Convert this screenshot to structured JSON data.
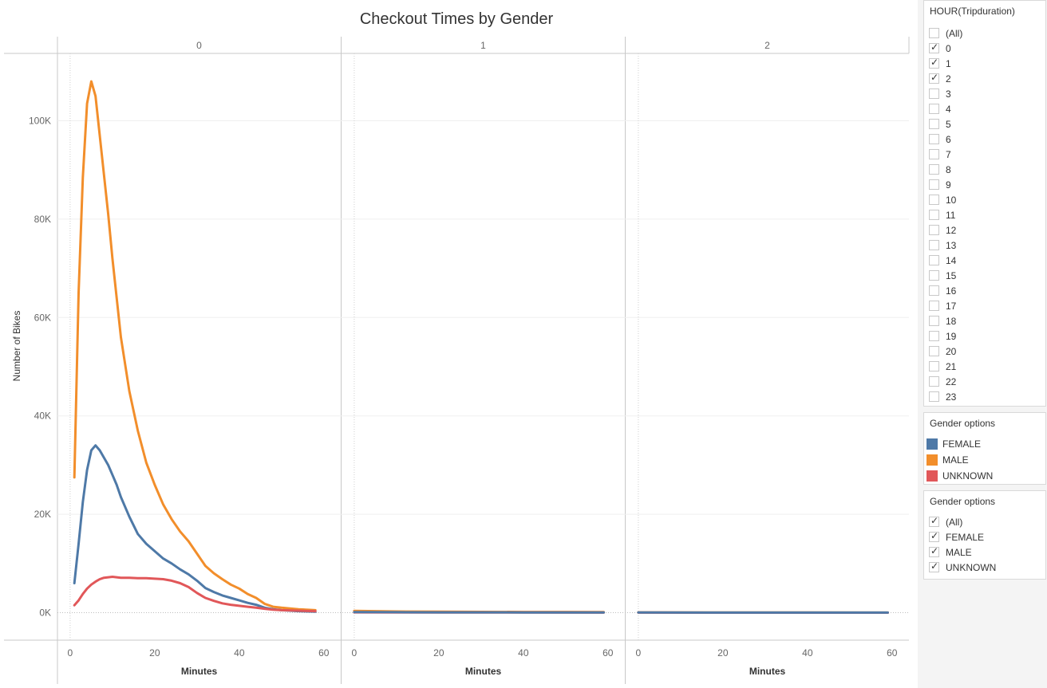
{
  "chart_data": {
    "type": "line",
    "title": "Checkout Times by Gender",
    "xlabel": "Minutes",
    "ylabel": "Number of Bikes",
    "ylim": [
      0,
      110000
    ],
    "xlim": [
      -3,
      64
    ],
    "y_ticks": [
      {
        "value": 0,
        "label": "0K"
      },
      {
        "value": 20000,
        "label": "20K"
      },
      {
        "value": 40000,
        "label": "40K"
      },
      {
        "value": 60000,
        "label": "60K"
      },
      {
        "value": 80000,
        "label": "80K"
      },
      {
        "value": 100000,
        "label": "100K"
      }
    ],
    "x_ticks": [
      0,
      20,
      40,
      60
    ],
    "grid": true,
    "panels": [
      {
        "label": "0",
        "series": [
          {
            "name": "MALE",
            "color": "#f28e2b",
            "points": [
              [
                1,
                27500
              ],
              [
                2,
                65000
              ],
              [
                3,
                88500
              ],
              [
                4,
                103500
              ],
              [
                5,
                108000
              ],
              [
                6,
                105000
              ],
              [
                7,
                97000
              ],
              [
                8,
                89000
              ],
              [
                9,
                81000
              ],
              [
                10,
                72000
              ],
              [
                11,
                64000
              ],
              [
                12,
                56000
              ],
              [
                14,
                45000
              ],
              [
                16,
                37000
              ],
              [
                18,
                30500
              ],
              [
                20,
                26000
              ],
              [
                22,
                22000
              ],
              [
                24,
                19000
              ],
              [
                26,
                16500
              ],
              [
                28,
                14500
              ],
              [
                30,
                12000
              ],
              [
                32,
                9500
              ],
              [
                34,
                8000
              ],
              [
                36,
                6800
              ],
              [
                38,
                5700
              ],
              [
                40,
                4900
              ],
              [
                42,
                3800
              ],
              [
                44,
                3000
              ],
              [
                46,
                1800
              ],
              [
                48,
                1200
              ],
              [
                50,
                1000
              ],
              [
                54,
                700
              ],
              [
                58,
                500
              ]
            ]
          },
          {
            "name": "FEMALE",
            "color": "#4e79a7",
            "points": [
              [
                1,
                6000
              ],
              [
                2,
                14000
              ],
              [
                3,
                22500
              ],
              [
                4,
                29000
              ],
              [
                5,
                33000
              ],
              [
                6,
                34000
              ],
              [
                7,
                33000
              ],
              [
                8,
                31500
              ],
              [
                9,
                30000
              ],
              [
                10,
                28000
              ],
              [
                11,
                26000
              ],
              [
                12,
                23500
              ],
              [
                14,
                19500
              ],
              [
                16,
                16000
              ],
              [
                18,
                14000
              ],
              [
                20,
                12500
              ],
              [
                22,
                11000
              ],
              [
                24,
                10000
              ],
              [
                26,
                8800
              ],
              [
                28,
                7800
              ],
              [
                30,
                6500
              ],
              [
                32,
                5000
              ],
              [
                34,
                4200
              ],
              [
                36,
                3500
              ],
              [
                38,
                3000
              ],
              [
                40,
                2500
              ],
              [
                42,
                2000
              ],
              [
                44,
                1600
              ],
              [
                46,
                1000
              ],
              [
                48,
                700
              ],
              [
                50,
                500
              ],
              [
                54,
                300
              ],
              [
                58,
                200
              ]
            ]
          },
          {
            "name": "UNKNOWN",
            "color": "#e15759",
            "points": [
              [
                1,
                1500
              ],
              [
                2,
                2500
              ],
              [
                3,
                3800
              ],
              [
                4,
                4900
              ],
              [
                5,
                5700
              ],
              [
                6,
                6300
              ],
              [
                7,
                6800
              ],
              [
                8,
                7100
              ],
              [
                9,
                7200
              ],
              [
                10,
                7300
              ],
              [
                11,
                7200
              ],
              [
                12,
                7100
              ],
              [
                14,
                7100
              ],
              [
                16,
                7000
              ],
              [
                18,
                7000
              ],
              [
                20,
                6900
              ],
              [
                22,
                6800
              ],
              [
                24,
                6500
              ],
              [
                26,
                6000
              ],
              [
                28,
                5200
              ],
              [
                30,
                4000
              ],
              [
                32,
                3000
              ],
              [
                34,
                2400
              ],
              [
                36,
                1900
              ],
              [
                38,
                1600
              ],
              [
                40,
                1400
              ],
              [
                42,
                1200
              ],
              [
                44,
                1000
              ],
              [
                46,
                800
              ],
              [
                48,
                600
              ],
              [
                50,
                500
              ],
              [
                54,
                400
              ],
              [
                58,
                300
              ]
            ]
          }
        ]
      },
      {
        "label": "1",
        "series": [
          {
            "name": "MALE",
            "color": "#f28e2b",
            "points": [
              [
                0,
                350
              ],
              [
                10,
                250
              ],
              [
                20,
                200
              ],
              [
                30,
                170
              ],
              [
                40,
                150
              ],
              [
                50,
                140
              ],
              [
                59,
                120
              ]
            ]
          },
          {
            "name": "UNKNOWN",
            "color": "#e15759",
            "points": [
              [
                0,
                60
              ],
              [
                20,
                40
              ],
              [
                40,
                30
              ],
              [
                59,
                20
              ]
            ]
          },
          {
            "name": "FEMALE",
            "color": "#4e79a7",
            "points": [
              [
                0,
                120
              ],
              [
                10,
                90
              ],
              [
                20,
                70
              ],
              [
                30,
                60
              ],
              [
                40,
                50
              ],
              [
                50,
                40
              ],
              [
                59,
                30
              ]
            ]
          }
        ]
      },
      {
        "label": "2",
        "series": [
          {
            "name": "MALE",
            "color": "#f28e2b",
            "points": [
              [
                0,
                60
              ],
              [
                20,
                40
              ],
              [
                40,
                30
              ],
              [
                59,
                20
              ]
            ]
          },
          {
            "name": "UNKNOWN",
            "color": "#e15759",
            "points": [
              [
                0,
                10
              ],
              [
                30,
                8
              ],
              [
                59,
                5
              ]
            ]
          },
          {
            "name": "FEMALE",
            "color": "#4e79a7",
            "points": [
              [
                0,
                30
              ],
              [
                20,
                20
              ],
              [
                40,
                15
              ],
              [
                59,
                10
              ]
            ]
          }
        ]
      }
    ]
  },
  "filters": {
    "hour": {
      "title": "HOUR(Tripduration)",
      "items": [
        {
          "label": "(All)",
          "checked": false
        },
        {
          "label": "0",
          "checked": true
        },
        {
          "label": "1",
          "checked": true
        },
        {
          "label": "2",
          "checked": true
        },
        {
          "label": "3",
          "checked": false
        },
        {
          "label": "4",
          "checked": false
        },
        {
          "label": "5",
          "checked": false
        },
        {
          "label": "6",
          "checked": false
        },
        {
          "label": "7",
          "checked": false
        },
        {
          "label": "8",
          "checked": false
        },
        {
          "label": "9",
          "checked": false
        },
        {
          "label": "10",
          "checked": false
        },
        {
          "label": "11",
          "checked": false
        },
        {
          "label": "12",
          "checked": false
        },
        {
          "label": "13",
          "checked": false
        },
        {
          "label": "14",
          "checked": false
        },
        {
          "label": "15",
          "checked": false
        },
        {
          "label": "16",
          "checked": false
        },
        {
          "label": "17",
          "checked": false
        },
        {
          "label": "18",
          "checked": false
        },
        {
          "label": "19",
          "checked": false
        },
        {
          "label": "20",
          "checked": false
        },
        {
          "label": "21",
          "checked": false
        },
        {
          "label": "22",
          "checked": false
        },
        {
          "label": "23",
          "checked": false
        }
      ]
    },
    "gender_legend": {
      "title": "Gender options",
      "items": [
        {
          "label": "FEMALE",
          "color": "#4e79a7"
        },
        {
          "label": "MALE",
          "color": "#f28e2b"
        },
        {
          "label": "UNKNOWN",
          "color": "#e15759"
        }
      ]
    },
    "gender_filter": {
      "title": "Gender options",
      "items": [
        {
          "label": "(All)",
          "checked": true
        },
        {
          "label": "FEMALE",
          "checked": true
        },
        {
          "label": "MALE",
          "checked": true
        },
        {
          "label": "UNKNOWN",
          "checked": true
        }
      ]
    }
  }
}
